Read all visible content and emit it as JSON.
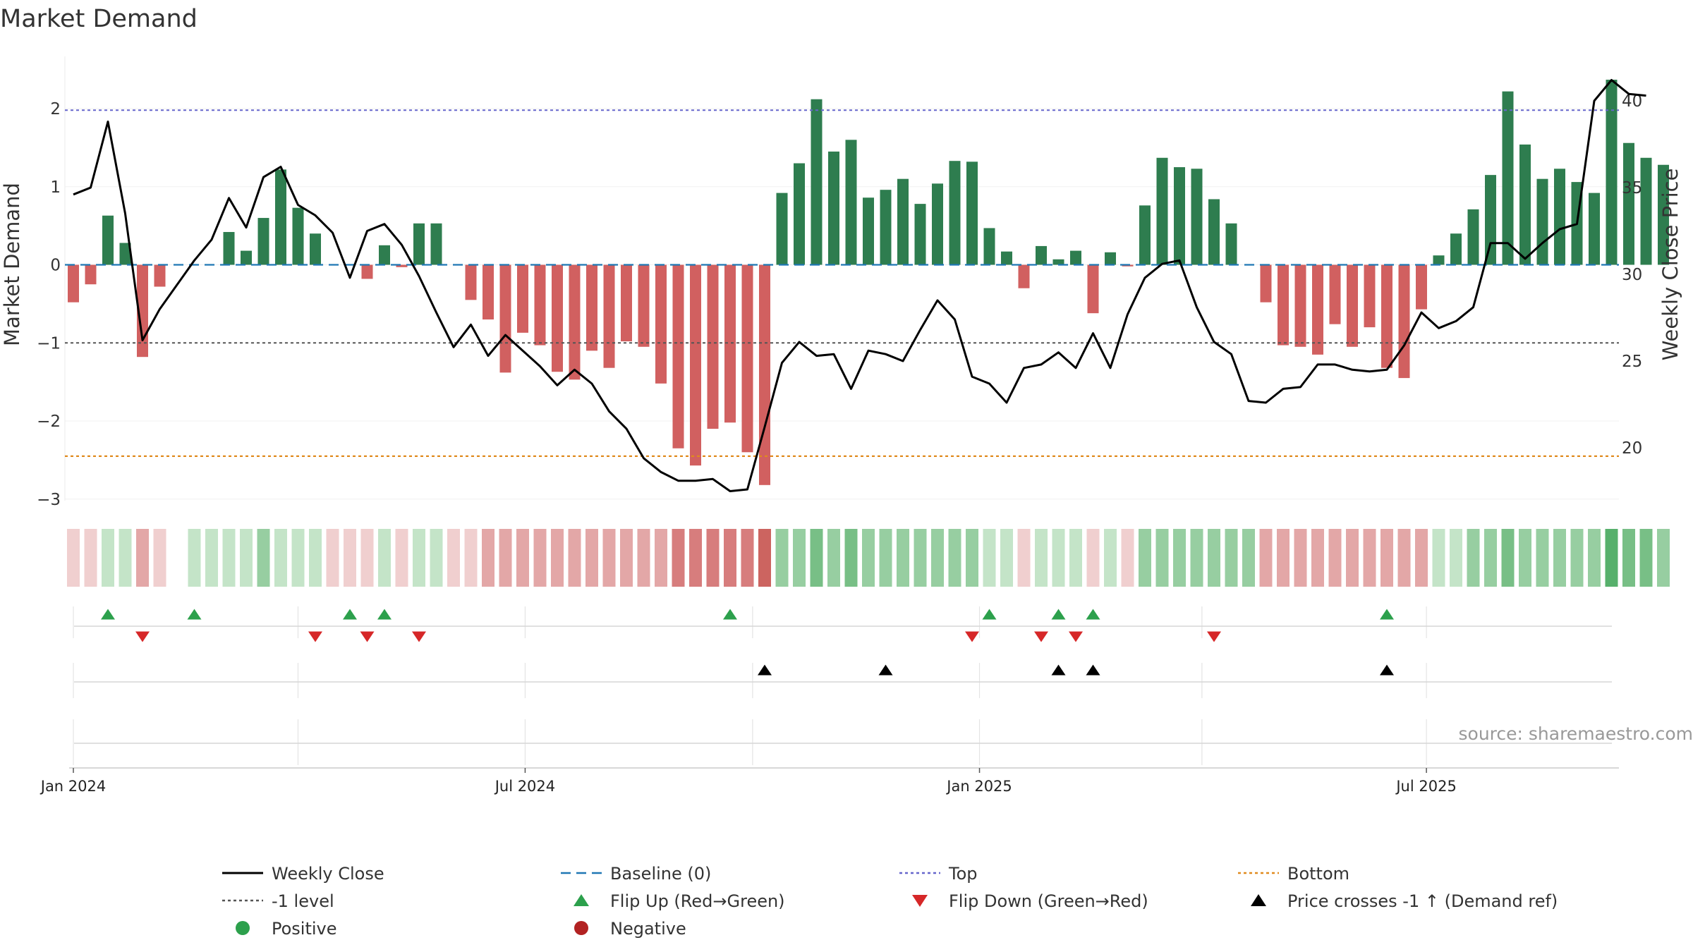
{
  "chart_data": {
    "type": "bar",
    "title": "Market Demand",
    "ylabel": "Market Demand",
    "y2label": "Weekly Close Price",
    "ylim": [
      -3.2,
      2.6
    ],
    "y2lim": [
      17,
      43
    ],
    "yticks": [
      2,
      1,
      0,
      -1,
      -2,
      -3
    ],
    "yticklabels": [
      "2",
      "1",
      "0",
      "−1",
      "−2",
      "−3"
    ],
    "y2ticks": [
      40,
      35,
      30,
      25,
      20
    ],
    "y2ticklabels": [
      "40",
      "35",
      "30",
      "25",
      "20"
    ],
    "xticks": [
      {
        "week": 0,
        "label": "Jan 2024"
      },
      {
        "week": 26.14,
        "label": "Jul 2024"
      },
      {
        "week": 52.43,
        "label": "Jan 2025"
      },
      {
        "week": 78.29,
        "label": "Jul 2025"
      }
    ],
    "minor_gridlines": [
      13,
      39.3,
      65.3
    ],
    "reference_lines": {
      "baseline": 0,
      "minus_one": -1,
      "top": 1.98,
      "bottom": -2.45
    },
    "demand": [
      -0.48,
      -0.25,
      0.63,
      0.28,
      -1.18,
      -0.28,
      0,
      0,
      0,
      0.42,
      0.18,
      0.6,
      1.22,
      0.73,
      0.4,
      0,
      0,
      -0.18,
      0.25,
      -0.03,
      0.53,
      0.53,
      0,
      -0.45,
      -0.7,
      -1.38,
      -0.87,
      -1.03,
      -1.37,
      -1.47,
      -1.1,
      -1.32,
      -0.98,
      -1.05,
      -1.52,
      -2.35,
      -2.57,
      -2.1,
      -2.02,
      -2.4,
      -2.82,
      0.92,
      1.3,
      2.12,
      1.45,
      1.6,
      0.86,
      0.96,
      1.1,
      0.78,
      1.04,
      1.33,
      1.32,
      0.47,
      0.17,
      -0.3,
      0.24,
      0.07,
      0.18,
      -0.62,
      0.16,
      -0.02,
      0.76,
      1.37,
      1.25,
      1.23,
      0.84,
      0.53,
      0,
      -0.48,
      -1.03,
      -1.05,
      -1.15,
      -0.76,
      -1.05,
      -0.8,
      -1.32,
      -1.45,
      -0.57,
      0.12,
      0.4,
      0.71,
      1.15,
      2.22,
      1.54,
      1.1,
      1.23,
      1.06,
      0.92,
      2.37,
      1.56,
      1.37,
      1.28
    ],
    "weekly_close": [
      34.6,
      35.0,
      38.8,
      33.5,
      26.2,
      28.0,
      29.4,
      30.8,
      32.0,
      34.4,
      32.7,
      35.6,
      36.2,
      34.0,
      33.4,
      32.4,
      29.8,
      32.5,
      32.9,
      31.7,
      29.9,
      27.8,
      25.8,
      27.1,
      25.3,
      26.5,
      25.6,
      24.7,
      23.6,
      24.5,
      23.7,
      22.1,
      21.1,
      19.4,
      18.6,
      18.1,
      18.1,
      18.2,
      17.5,
      17.6,
      21.2,
      24.9,
      26.1,
      25.3,
      25.4,
      23.4,
      25.6,
      25.4,
      25.0,
      26.8,
      28.5,
      27.4,
      24.1,
      23.7,
      22.6,
      24.6,
      24.8,
      25.5,
      24.6,
      26.6,
      24.6,
      27.7,
      29.8,
      30.6,
      30.8,
      28.1,
      26.1,
      25.4,
      22.7,
      22.6,
      23.4,
      23.5,
      24.8,
      24.8,
      24.5,
      24.4,
      24.5,
      25.9,
      27.8,
      26.9,
      27.3,
      28.1,
      31.8,
      31.8,
      30.9,
      31.8,
      32.6,
      32.9,
      40.0,
      41.2,
      40.4,
      40.3
    ],
    "heat_strip": [
      -1,
      -1,
      1,
      1,
      -2,
      -1,
      null,
      1,
      1,
      1,
      1,
      2,
      1,
      1,
      1,
      -1,
      -1,
      -1,
      1,
      -1,
      1,
      1,
      -1,
      -1,
      -2,
      -2,
      -2,
      -2,
      -2,
      -2,
      -2,
      -2,
      -2,
      -2,
      -2,
      -3,
      -3,
      -3,
      -3,
      -3,
      -4,
      2,
      2,
      3,
      2,
      3,
      2,
      2,
      2,
      2,
      2,
      2,
      2,
      1,
      1,
      -1,
      1,
      1,
      1,
      -1,
      1,
      -1,
      2,
      2,
      2,
      2,
      2,
      2,
      2,
      -2,
      -2,
      -2,
      -2,
      -2,
      -2,
      -2,
      -2,
      -2,
      -2,
      1,
      1,
      2,
      2,
      3,
      2,
      2,
      2,
      2,
      2,
      4,
      3,
      3,
      2
    ],
    "flip_up_weeks": [
      2,
      7,
      16,
      18,
      38,
      53,
      57,
      59,
      76
    ],
    "flip_down_weeks": [
      4,
      14,
      17,
      20,
      52,
      56,
      58,
      66
    ],
    "price_cross_weeks": [
      40,
      47,
      57,
      59,
      76
    ]
  },
  "colors": {
    "positive": "#2e7d4f",
    "negative": "#d16060",
    "close": "#000000",
    "baseline": "#1f77b4",
    "top": "#6666cc",
    "bottom": "#e08a1e",
    "minus_one": "#555555",
    "flip_up": "#2ca04c",
    "flip_down": "#d62728"
  },
  "legend": [
    {
      "label": "Weekly Close",
      "kind": "solid-line",
      "color": "#000000"
    },
    {
      "label": "Baseline (0)",
      "kind": "dashed-line",
      "color": "#1f77b4"
    },
    {
      "label": "Top",
      "kind": "dotted-line",
      "color": "#6666cc"
    },
    {
      "label": "Bottom",
      "kind": "dotted-line",
      "color": "#e08a1e"
    },
    {
      "label": "-1 level",
      "kind": "dotted-line",
      "color": "#555555"
    },
    {
      "label": "Flip Up (Red→Green)",
      "kind": "triangle-up",
      "color": "#2ca04c"
    },
    {
      "label": "Flip Down (Green→Red)",
      "kind": "triangle-down",
      "color": "#d62728"
    },
    {
      "label": "Price crosses -1 ↑ (Demand ref)",
      "kind": "triangle-up",
      "color": "#000000"
    },
    {
      "label": "Positive",
      "kind": "dot",
      "color": "#2ca04c"
    },
    {
      "label": "Negative",
      "kind": "dot",
      "color": "#b22222"
    }
  ],
  "source": "source: sharemaestro.com"
}
